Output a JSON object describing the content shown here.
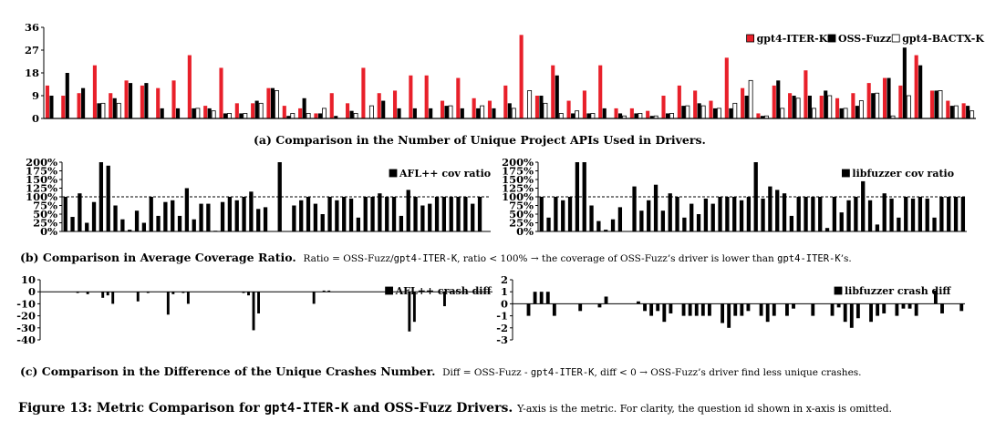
{
  "colors": {
    "gpt4_iter_k": "#e8202a",
    "oss_fuzz": "#000000",
    "gpt4_bactx_k": "#ffffff"
  },
  "captions": {
    "a": "(a) Comparison in the Number of Unique Project APIs Used in Drivers.",
    "b_bold": "(b) Comparison in Average Coverage Ratio.",
    "b_note_1": "Ratio = OSS-Fuzz/",
    "b_note_code1": "gpt4-ITER-K",
    "b_note_2": ", ratio < 100% → the coverage of OSS-Fuzz’s driver is lower than ",
    "b_note_code2": "gpt4-ITER-K",
    "b_note_3": "’s.",
    "c_bold": "(c) Comparison in the Difference of the Unique Crashes Number.",
    "c_note_1": "Diff = OSS-Fuzz - ",
    "c_note_code1": "gpt4-ITER-K",
    "c_note_2": ", diff < 0 → OSS-Fuzz’s driver find less unique crashes.",
    "fig_1": "Figure 13: Metric Comparison for ",
    "fig_code1": "gpt4-ITER-K",
    "fig_2": " and OSS-Fuzz Drivers.",
    "fig_note": "Y-axis is the metric. For clarity, the question id shown in x-axis is omitted."
  },
  "chart_data": [
    {
      "id": "apis",
      "type": "bar",
      "title": "",
      "yticks": [
        "0",
        "9",
        "18",
        "27",
        "36"
      ],
      "ylim": [
        0,
        36
      ],
      "legend_position": "top-right",
      "series": [
        {
          "name": "gpt4-ITER-K",
          "color": "#e8202a",
          "values": [
            13,
            9,
            10,
            21,
            10,
            15,
            13,
            12,
            15,
            25,
            5,
            20,
            6,
            6,
            12,
            5,
            4,
            2,
            10,
            6,
            20,
            10,
            11,
            17,
            17,
            7,
            16,
            8,
            7,
            13,
            33,
            9,
            21,
            7,
            11,
            21,
            4,
            4,
            3,
            9,
            13,
            11,
            7,
            24,
            12,
            2,
            13,
            10,
            19,
            9,
            8,
            10,
            14,
            16,
            13,
            25,
            11,
            7,
            6
          ]
        },
        {
          "name": "OSS-Fuzz",
          "color": "#000000",
          "values": [
            9,
            18,
            12,
            6,
            8,
            14,
            14,
            4,
            4,
            4,
            4,
            2,
            2,
            7,
            12,
            1,
            8,
            2,
            1,
            3,
            0,
            7,
            4,
            4,
            4,
            5,
            4,
            4,
            4,
            6,
            0,
            9,
            17,
            2,
            2,
            4,
            2,
            2,
            1,
            2,
            5,
            6,
            4,
            4,
            9,
            1,
            15,
            9,
            9,
            11,
            4,
            5,
            10,
            16,
            28,
            21,
            11,
            5,
            5
          ]
        },
        {
          "name": "gpt4-BACTX-K",
          "color": "#ffffff",
          "values": [
            0,
            0,
            0,
            6,
            6,
            0,
            0,
            0,
            0,
            4,
            3,
            2,
            2,
            6,
            11,
            2,
            2,
            4,
            0,
            2,
            5,
            0,
            0,
            0,
            0,
            5,
            0,
            5,
            0,
            4,
            11,
            6,
            2,
            3,
            2,
            0,
            1,
            2,
            1,
            2,
            5,
            5,
            4,
            6,
            15,
            1,
            4,
            8,
            4,
            9,
            4,
            7,
            10,
            1,
            9,
            0,
            11,
            5,
            3
          ]
        }
      ]
    },
    {
      "id": "afl_cov",
      "type": "bar",
      "yticks": [
        "0%",
        "25%",
        "50%",
        "75%",
        "100%",
        "125%",
        "150%",
        "175%",
        "200%"
      ],
      "ylim": [
        0,
        200
      ],
      "reference_line": 100,
      "legend_position": "top-right",
      "series": [
        {
          "name": "AFL++ cov ratio",
          "color": "#000000",
          "values": [
            100,
            42,
            110,
            25,
            85,
            200,
            190,
            75,
            35,
            5,
            60,
            25,
            100,
            45,
            85,
            90,
            45,
            125,
            35,
            80,
            80,
            2,
            85,
            100,
            90,
            100,
            115,
            65,
            70,
            0,
            200,
            0,
            75,
            90,
            100,
            80,
            50,
            100,
            90,
            100,
            95,
            40,
            100,
            100,
            110,
            100,
            100,
            45,
            120,
            100,
            75,
            80,
            100,
            100,
            100,
            100,
            100,
            80,
            100,
            0
          ]
        }
      ]
    },
    {
      "id": "libfuzzer_cov",
      "type": "bar",
      "yticks": [
        "0%",
        "25%",
        "50%",
        "75%",
        "100%",
        "125%",
        "150%",
        "175%",
        "200%"
      ],
      "ylim": [
        0,
        200
      ],
      "reference_line": 100,
      "legend_position": "top-right",
      "series": [
        {
          "name": "libfuzzer cov ratio",
          "color": "#000000",
          "values": [
            100,
            40,
            100,
            90,
            100,
            200,
            200,
            75,
            30,
            5,
            35,
            70,
            0,
            130,
            60,
            90,
            135,
            60,
            110,
            100,
            40,
            80,
            50,
            95,
            80,
            100,
            100,
            100,
            90,
            100,
            200,
            95,
            130,
            120,
            110,
            45,
            100,
            100,
            100,
            100,
            10,
            100,
            55,
            90,
            100,
            145,
            90,
            20,
            110,
            95,
            40,
            100,
            95,
            100,
            95,
            40,
            100,
            100,
            100,
            100
          ]
        }
      ]
    },
    {
      "id": "afl_crash",
      "type": "bar",
      "yticks": [
        "-40",
        "-30",
        "-20",
        "-10",
        "0",
        "10"
      ],
      "ylim": [
        -40,
        10
      ],
      "legend_position": "top-right",
      "series": [
        {
          "name": "AFL++ crash diff",
          "color": "#000000",
          "values": [
            0,
            0,
            0,
            0,
            0,
            0,
            0,
            -1,
            0,
            -2,
            0,
            0,
            -5,
            -3,
            -10,
            0,
            0,
            0,
            0,
            -8,
            0,
            -1,
            0,
            0,
            0,
            -19,
            -2,
            0,
            -1,
            -10,
            0,
            0,
            0,
            0,
            0,
            0,
            0,
            0,
            0,
            0,
            -1,
            -3,
            -32,
            -18,
            0,
            0,
            0,
            0,
            0,
            0,
            0,
            0,
            0,
            0,
            -10,
            0,
            1,
            1,
            0,
            0,
            0,
            0,
            0,
            0,
            0,
            0,
            0,
            0,
            0,
            0,
            0,
            0,
            0,
            -33,
            -25,
            0,
            0,
            0,
            0,
            0,
            -12,
            0,
            0,
            0,
            0,
            0,
            0,
            0,
            0,
            0
          ]
        }
      ]
    },
    {
      "id": "libfuzzer_crash",
      "type": "bar",
      "yticks": [
        "-3",
        "-2",
        "-1",
        "0",
        "1",
        "2"
      ],
      "ylim": [
        -3,
        2
      ],
      "legend_position": "top-right",
      "series": [
        {
          "name": "libfuzzer crash diff",
          "color": "#000000",
          "values": [
            0,
            0,
            -1,
            1,
            1,
            1,
            -1,
            0,
            0,
            0,
            -0.6,
            0,
            0,
            -0.3,
            0.6,
            0,
            0,
            0,
            0,
            0.2,
            -0.6,
            -1,
            -0.6,
            -1.5,
            -0.8,
            0,
            -1,
            -1,
            -1,
            -1,
            -1,
            0,
            -1.6,
            -2,
            -1,
            -1,
            -0.6,
            0,
            -1,
            -1.5,
            -1,
            0,
            -1,
            -0.4,
            0,
            0,
            -1,
            0,
            0,
            -1,
            -0.3,
            -1.5,
            -2,
            -1.2,
            0,
            -1.5,
            -1,
            -0.8,
            0,
            -1,
            -0.4,
            -0.4,
            -1,
            0,
            0,
            1.1,
            -0.8,
            0,
            0,
            -0.6
          ]
        }
      ]
    }
  ]
}
